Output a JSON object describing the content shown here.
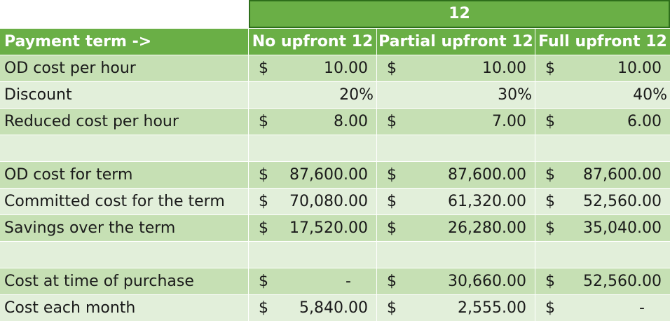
{
  "title_period": "12",
  "header": {
    "payment_term": "Payment term ->",
    "no_upfront": "No upfront 12",
    "partial_upfront": "Partial upfront 12",
    "full_upfront": "Full upfront 12"
  },
  "rows": [
    {
      "label": "OD cost per hour",
      "c1": "10.00",
      "c2": "10.00",
      "c3": "10.00",
      "cur": "$"
    },
    {
      "label": "Discount",
      "c1": "20%",
      "c2": "30%",
      "c3": "40%"
    },
    {
      "label": "Reduced cost per hour",
      "c1": "8.00",
      "c2": "7.00",
      "c3": "6.00",
      "cur": "$"
    },
    {
      "label": ""
    },
    {
      "label": "OD cost for term",
      "c1": "87,600.00",
      "c2": "87,600.00",
      "c3": "87,600.00",
      "cur": "$"
    },
    {
      "label": "Committed cost for the term",
      "c1": "70,080.00",
      "c2": "61,320.00",
      "c3": "52,560.00",
      "cur": "$"
    },
    {
      "label": "Savings over the term",
      "c1": "17,520.00",
      "c2": "26,280.00",
      "c3": "35,040.00",
      "cur": "$"
    },
    {
      "label": ""
    },
    {
      "label": "Cost at time of purchase",
      "c1": "-",
      "c2": "30,660.00",
      "c3": "52,560.00",
      "cur": "$"
    },
    {
      "label": "Cost each month",
      "c1": "5,840.00",
      "c2": "2,555.00",
      "c3": "-",
      "cur": "$"
    }
  ],
  "colors": {
    "header_green": "#6aaf46",
    "band_green": "#c6e0b4",
    "light_green": "#e2efda"
  }
}
